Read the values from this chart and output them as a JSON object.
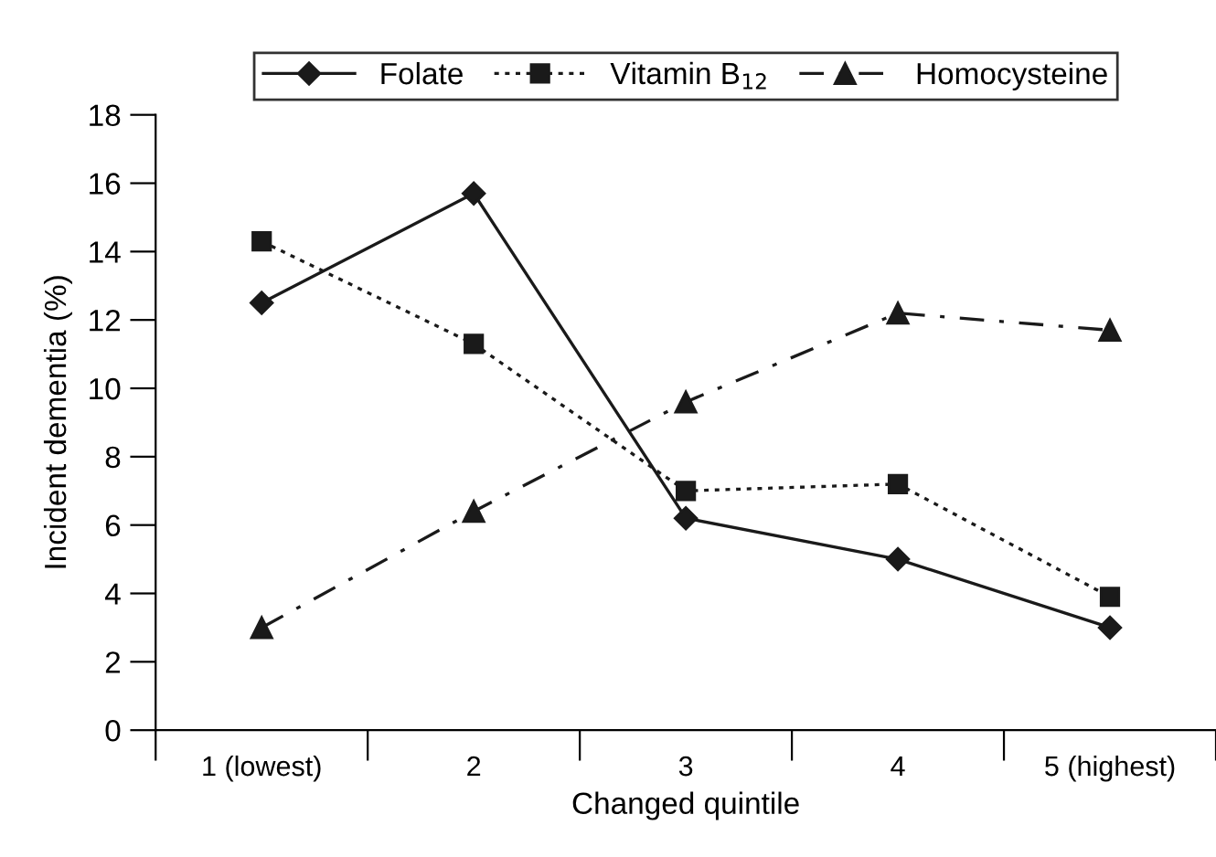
{
  "chart_data": {
    "type": "line",
    "xlabel": "Changed quintile",
    "ylabel": "Incident dementia (%)",
    "categories": [
      "1 (lowest)",
      "2",
      "3",
      "4",
      "5 (highest)"
    ],
    "ylim": [
      0,
      18
    ],
    "yticks": [
      0,
      2,
      4,
      6,
      8,
      10,
      12,
      14,
      16,
      18
    ],
    "grid": false,
    "legend": "top",
    "series": [
      {
        "name": "Folate",
        "color": "#1a1a1a",
        "marker": "diamond",
        "line_style": "solid",
        "values": [
          12.5,
          15.7,
          6.2,
          5.0,
          3.0
        ]
      },
      {
        "name": "Vitamin B$_{12}$",
        "color": "#1a1a1a",
        "marker": "square",
        "line_style": "dotted",
        "values": [
          14.3,
          11.3,
          7.0,
          7.2,
          3.9
        ]
      },
      {
        "name": "Homocysteine",
        "color": "#1a1a1a",
        "marker": "triangle",
        "line_style": "dashdot",
        "values": [
          3.0,
          6.4,
          9.6,
          12.2,
          11.7
        ]
      }
    ]
  }
}
